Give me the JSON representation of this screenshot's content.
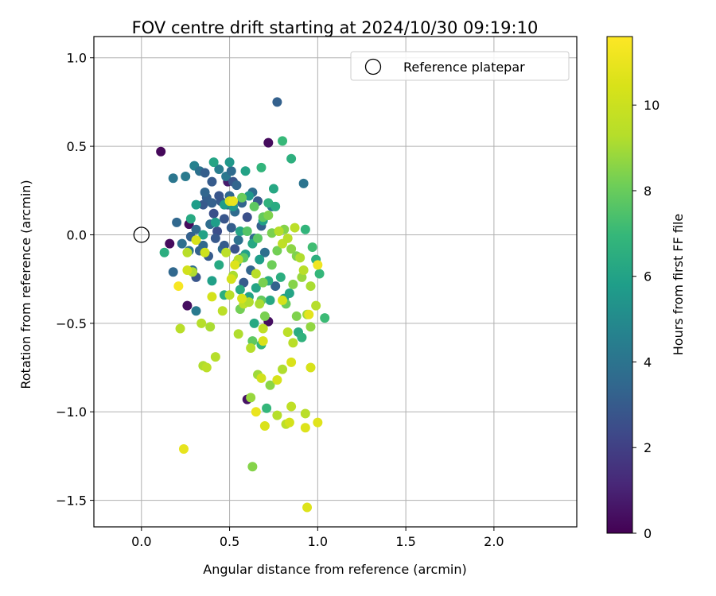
{
  "chart_data": {
    "type": "scatter",
    "title": "FOV centre drift starting at 2024/10/30 09:19:10",
    "xlabel": "Angular distance from reference (arcmin)",
    "ylabel": "Rotation from reference (arcmin)",
    "xlim": [
      -0.27,
      2.47
    ],
    "ylim": [
      -1.65,
      1.12
    ],
    "xticks": [
      0.0,
      0.5,
      1.0,
      1.5,
      2.0
    ],
    "xtick_labels": [
      "0.0",
      "0.5",
      "1.0",
      "1.5",
      "2.0"
    ],
    "yticks": [
      1.0,
      0.5,
      0.0,
      -0.5,
      -1.0,
      -1.5
    ],
    "ytick_labels": [
      "1.0",
      "0.5",
      "0.0",
      "−0.5",
      "−1.0",
      "−1.5"
    ],
    "grid": true,
    "legend": {
      "placement": "top-right",
      "label": "Reference platepar"
    },
    "reference_point": {
      "x": 0.0,
      "y": 0.0,
      "marker": "open-circle"
    },
    "colorbar": {
      "label": "Hours from first FF file",
      "min": 0,
      "max": 11.6,
      "ticks": [
        0,
        2,
        4,
        6,
        8,
        10
      ],
      "tick_labels": [
        "0",
        "2",
        "4",
        "6",
        "8",
        "10"
      ],
      "colormap": "viridis"
    },
    "series": [
      {
        "color_variable": "hours",
        "points": [
          [
            0.11,
            0.47,
            0.2
          ],
          [
            0.72,
            0.52,
            0.3
          ],
          [
            0.16,
            -0.05,
            0.3
          ],
          [
            0.26,
            -0.4,
            0.4
          ],
          [
            0.27,
            0.06,
            0.3
          ],
          [
            0.6,
            -0.93,
            0.5
          ],
          [
            0.72,
            -0.49,
            0.4
          ],
          [
            0.49,
            0.3,
            0.8
          ],
          [
            0.77,
            0.75,
            3.2
          ],
          [
            0.18,
            0.32,
            4.1
          ],
          [
            0.25,
            0.33,
            4.3
          ],
          [
            0.3,
            0.39,
            4.6
          ],
          [
            0.33,
            0.36,
            3.9
          ],
          [
            0.36,
            0.35,
            3.1
          ],
          [
            0.4,
            0.3,
            3.0
          ],
          [
            0.44,
            0.37,
            4.4
          ],
          [
            0.48,
            0.33,
            4.2
          ],
          [
            0.51,
            0.36,
            3.6
          ],
          [
            0.52,
            0.3,
            2.8
          ],
          [
            0.54,
            0.28,
            3.4
          ],
          [
            0.92,
            0.29,
            4.0
          ],
          [
            0.2,
            0.07,
            3.5
          ],
          [
            0.23,
            -0.05,
            3.8
          ],
          [
            0.28,
            -0.01,
            3.2
          ],
          [
            0.31,
            0.03,
            3.6
          ],
          [
            0.33,
            -0.09,
            3.3
          ],
          [
            0.35,
            0.17,
            2.9
          ],
          [
            0.37,
            0.21,
            3.1
          ],
          [
            0.39,
            0.06,
            3.7
          ],
          [
            0.41,
            0.12,
            2.6
          ],
          [
            0.43,
            0.02,
            2.5
          ],
          [
            0.45,
            0.19,
            3.0
          ],
          [
            0.47,
            0.09,
            2.8
          ],
          [
            0.49,
            0.17,
            3.3
          ],
          [
            0.51,
            0.04,
            3.1
          ],
          [
            0.53,
            0.13,
            3.6
          ],
          [
            0.55,
            -0.03,
            3.9
          ],
          [
            0.57,
            0.18,
            3.4
          ],
          [
            0.35,
            -0.06,
            3.5
          ],
          [
            0.38,
            -0.12,
            3.0
          ],
          [
            0.42,
            -0.02,
            2.9
          ],
          [
            0.46,
            -0.08,
            3.8
          ],
          [
            0.27,
            -0.09,
            4.0
          ],
          [
            0.29,
            -0.2,
            3.7
          ],
          [
            0.31,
            -0.24,
            2.8
          ],
          [
            0.18,
            -0.21,
            3.5
          ],
          [
            0.31,
            -0.43,
            4.3
          ],
          [
            0.53,
            -0.08,
            2.7
          ],
          [
            0.57,
            -0.13,
            3.1
          ],
          [
            0.62,
            -0.2,
            3.4
          ],
          [
            0.64,
            -0.02,
            3.6
          ],
          [
            0.66,
            0.19,
            2.9
          ],
          [
            0.68,
            0.05,
            3.2
          ],
          [
            0.7,
            -0.1,
            3.8
          ],
          [
            0.74,
            0.16,
            4.2
          ],
          [
            0.76,
            -0.29,
            3.3
          ],
          [
            0.63,
            0.24,
            3.7
          ],
          [
            0.58,
            -0.27,
            3.0
          ],
          [
            0.6,
            0.1,
            2.6
          ],
          [
            0.4,
            0.18,
            3.2
          ],
          [
            0.36,
            0.24,
            3.4
          ],
          [
            0.44,
            0.22,
            2.8
          ],
          [
            0.5,
            0.22,
            3.5
          ],
          [
            0.47,
            -0.06,
            3.0
          ],
          [
            0.41,
            0.41,
            6.1
          ],
          [
            0.5,
            0.41,
            5.5
          ],
          [
            0.59,
            0.36,
            6.0
          ],
          [
            0.68,
            0.38,
            6.8
          ],
          [
            0.8,
            0.53,
            7.0
          ],
          [
            0.85,
            0.43,
            6.6
          ],
          [
            0.75,
            0.26,
            6.2
          ],
          [
            0.72,
            0.18,
            6.7
          ],
          [
            0.69,
            0.08,
            5.9
          ],
          [
            0.76,
            0.16,
            6.4
          ],
          [
            0.61,
            0.22,
            5.6
          ],
          [
            0.31,
            0.17,
            5.8
          ],
          [
            0.28,
            0.09,
            6.3
          ],
          [
            0.13,
            -0.1,
            6.5
          ],
          [
            0.47,
            0.17,
            5.7
          ],
          [
            0.52,
            0.16,
            5.5
          ],
          [
            0.56,
            0.02,
            6.1
          ],
          [
            0.59,
            -0.11,
            5.9
          ],
          [
            0.63,
            -0.05,
            6.2
          ],
          [
            0.67,
            -0.14,
            5.8
          ],
          [
            0.56,
            -0.31,
            6.4
          ],
          [
            0.61,
            -0.35,
            6.0
          ],
          [
            0.64,
            -0.5,
            6.3
          ],
          [
            0.68,
            -0.62,
            6.9
          ],
          [
            0.73,
            -0.37,
            6.2
          ],
          [
            0.79,
            -0.24,
            6.5
          ],
          [
            0.81,
            -0.36,
            5.8
          ],
          [
            0.84,
            -0.33,
            6.1
          ],
          [
            0.89,
            -0.55,
            6.4
          ],
          [
            0.91,
            -0.58,
            6.7
          ],
          [
            0.99,
            -0.14,
            6.6
          ],
          [
            1.01,
            -0.22,
            6.9
          ],
          [
            1.04,
            -0.47,
            7.1
          ],
          [
            0.93,
            0.03,
            6.8
          ],
          [
            0.97,
            -0.07,
            7.2
          ],
          [
            0.71,
            -0.98,
            6.9
          ],
          [
            0.47,
            -0.34,
            6.5
          ],
          [
            0.4,
            -0.26,
            5.9
          ],
          [
            0.44,
            -0.17,
            6.3
          ],
          [
            0.42,
            0.07,
            5.8
          ],
          [
            0.35,
            0.0,
            6.0
          ],
          [
            0.54,
            -0.16,
            5.7
          ],
          [
            0.65,
            -0.3,
            6.1
          ],
          [
            0.72,
            -0.26,
            6.4
          ],
          [
            0.64,
            0.16,
            7.8
          ],
          [
            0.57,
            0.21,
            8.0
          ],
          [
            0.69,
            0.1,
            7.9
          ],
          [
            0.72,
            0.11,
            8.4
          ],
          [
            0.74,
            0.01,
            8.3
          ],
          [
            0.77,
            -0.09,
            8.2
          ],
          [
            0.81,
            0.03,
            8.5
          ],
          [
            0.85,
            -0.08,
            8.6
          ],
          [
            0.88,
            -0.12,
            8.4
          ],
          [
            0.6,
            0.02,
            7.6
          ],
          [
            0.66,
            -0.02,
            7.7
          ],
          [
            0.69,
            -0.27,
            8.3
          ],
          [
            0.74,
            -0.17,
            8.1
          ],
          [
            0.86,
            -0.28,
            8.5
          ],
          [
            0.88,
            -0.46,
            8.4
          ],
          [
            0.94,
            -0.45,
            8.9
          ],
          [
            0.96,
            -0.52,
            8.7
          ],
          [
            0.82,
            -0.39,
            8.0
          ],
          [
            0.91,
            -0.24,
            8.8
          ],
          [
            0.58,
            -0.13,
            7.7
          ],
          [
            0.56,
            -0.42,
            8.2
          ],
          [
            0.68,
            -0.37,
            7.9
          ],
          [
            0.7,
            -0.46,
            8.3
          ],
          [
            0.63,
            -0.6,
            7.8
          ],
          [
            0.66,
            -0.79,
            8.9
          ],
          [
            0.73,
            -0.85,
            8.6
          ],
          [
            0.63,
            -1.31,
            8.5
          ],
          [
            0.62,
            -0.92,
            8.8
          ],
          [
            0.78,
            0.02,
            9.3
          ],
          [
            0.8,
            -0.05,
            9.6
          ],
          [
            0.83,
            -0.02,
            9.4
          ],
          [
            0.87,
            0.04,
            9.5
          ],
          [
            0.9,
            -0.13,
            9.2
          ],
          [
            0.92,
            -0.2,
            9.4
          ],
          [
            0.96,
            -0.29,
            9.1
          ],
          [
            0.99,
            -0.4,
            9.3
          ],
          [
            0.83,
            -0.55,
            9.5
          ],
          [
            0.86,
            -0.61,
            9.4
          ],
          [
            0.8,
            -0.76,
            9.2
          ],
          [
            0.85,
            -0.97,
            9.6
          ],
          [
            0.77,
            -1.02,
            9.3
          ],
          [
            0.82,
            -1.07,
            9.5
          ],
          [
            0.93,
            -1.01,
            9.4
          ],
          [
            0.52,
            -0.23,
            9.1
          ],
          [
            0.55,
            -0.14,
            9.3
          ],
          [
            0.58,
            -0.39,
            9.5
          ],
          [
            0.61,
            -0.38,
            9.2
          ],
          [
            0.65,
            -0.22,
            9.4
          ],
          [
            0.67,
            -0.39,
            9.1
          ],
          [
            0.69,
            -0.53,
            9.6
          ],
          [
            0.62,
            -0.64,
            9.3
          ],
          [
            0.55,
            -0.56,
            9.2
          ],
          [
            0.5,
            -0.34,
            9.4
          ],
          [
            0.46,
            -0.43,
            9.5
          ],
          [
            0.39,
            -0.52,
            9.1
          ],
          [
            0.34,
            -0.5,
            9.3
          ],
          [
            0.22,
            -0.53,
            9.4
          ],
          [
            0.35,
            -0.74,
            9.2
          ],
          [
            0.37,
            -0.75,
            9.5
          ],
          [
            0.42,
            -0.69,
            9.3
          ],
          [
            0.26,
            -0.1,
            9.4
          ],
          [
            0.29,
            -0.21,
            9.2
          ],
          [
            0.48,
            -0.1,
            9.5
          ],
          [
            0.26,
            -0.2,
            10.2
          ],
          [
            0.31,
            -0.03,
            10.4
          ],
          [
            0.36,
            -0.1,
            10.1
          ],
          [
            0.4,
            -0.35,
            10.3
          ],
          [
            0.5,
            0.19,
            10.5
          ],
          [
            0.51,
            -0.25,
            10.3
          ],
          [
            0.53,
            -0.17,
            10.6
          ],
          [
            0.57,
            -0.36,
            10.4
          ],
          [
            0.68,
            -0.81,
            10.2
          ],
          [
            0.7,
            -1.08,
            10.5
          ],
          [
            0.84,
            -1.06,
            10.3
          ],
          [
            0.77,
            -0.82,
            10.4
          ],
          [
            0.85,
            -0.72,
            10.5
          ],
          [
            0.93,
            -1.09,
            10.6
          ],
          [
            1.0,
            -1.06,
            10.7
          ],
          [
            0.96,
            -0.75,
            10.4
          ],
          [
            0.95,
            -0.45,
            10.8
          ],
          [
            0.8,
            -0.37,
            10.3
          ],
          [
            0.69,
            -0.6,
            10.5
          ],
          [
            0.24,
            -1.21,
            10.9
          ],
          [
            0.94,
            -1.54,
            10.6
          ],
          [
            0.65,
            -1.0,
            11.0
          ],
          [
            1.0,
            -0.17,
            11.2
          ],
          [
            0.21,
            -0.29,
            11.4
          ],
          [
            0.52,
            0.19,
            11.0
          ]
        ]
      }
    ]
  }
}
